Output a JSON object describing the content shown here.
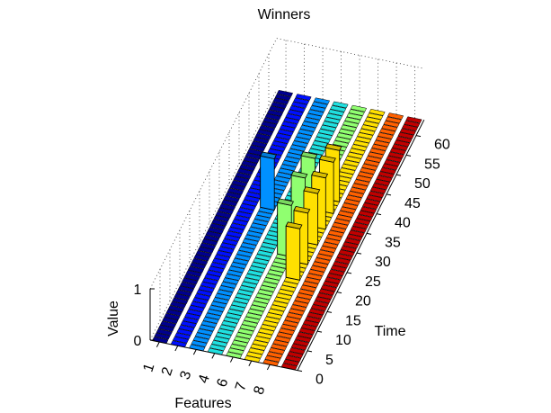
{
  "chart_data": {
    "type": "bar3d",
    "title": "Winners",
    "xlabel": "Features",
    "ylabel": "Time",
    "zlabel": "Value",
    "x_ticks": [
      "1",
      "2",
      "3",
      "4",
      "6",
      "7",
      "8"
    ],
    "features": [
      1,
      2,
      3,
      4,
      5,
      6,
      7,
      8
    ],
    "y_ticks": [
      "0",
      "5",
      "10",
      "15",
      "20",
      "25",
      "30",
      "35",
      "40",
      "45",
      "50",
      "55",
      "60"
    ],
    "z_ticks": [
      "0",
      "1"
    ],
    "time_range": [
      0,
      64
    ],
    "value_range": [
      0,
      1
    ],
    "feature_colors": [
      "#00008f",
      "#0010ff",
      "#0090ff",
      "#20e0e0",
      "#90ff70",
      "#ffe000",
      "#ff6000",
      "#c00000"
    ],
    "bar_values": [
      {
        "feature": 3,
        "time": 36,
        "value": 1
      },
      {
        "feature": 5,
        "time": 26,
        "value": 1
      },
      {
        "feature": 5,
        "time": 33,
        "value": 1
      },
      {
        "feature": 5,
        "time": 38,
        "value": 1
      },
      {
        "feature": 6,
        "time": 21,
        "value": 1
      },
      {
        "feature": 6,
        "time": 25,
        "value": 1
      },
      {
        "feature": 6,
        "time": 30,
        "value": 1
      },
      {
        "feature": 6,
        "time": 34,
        "value": 1
      },
      {
        "feature": 6,
        "time": 38,
        "value": 1
      },
      {
        "feature": 6,
        "time": 41,
        "value": 1
      }
    ]
  }
}
